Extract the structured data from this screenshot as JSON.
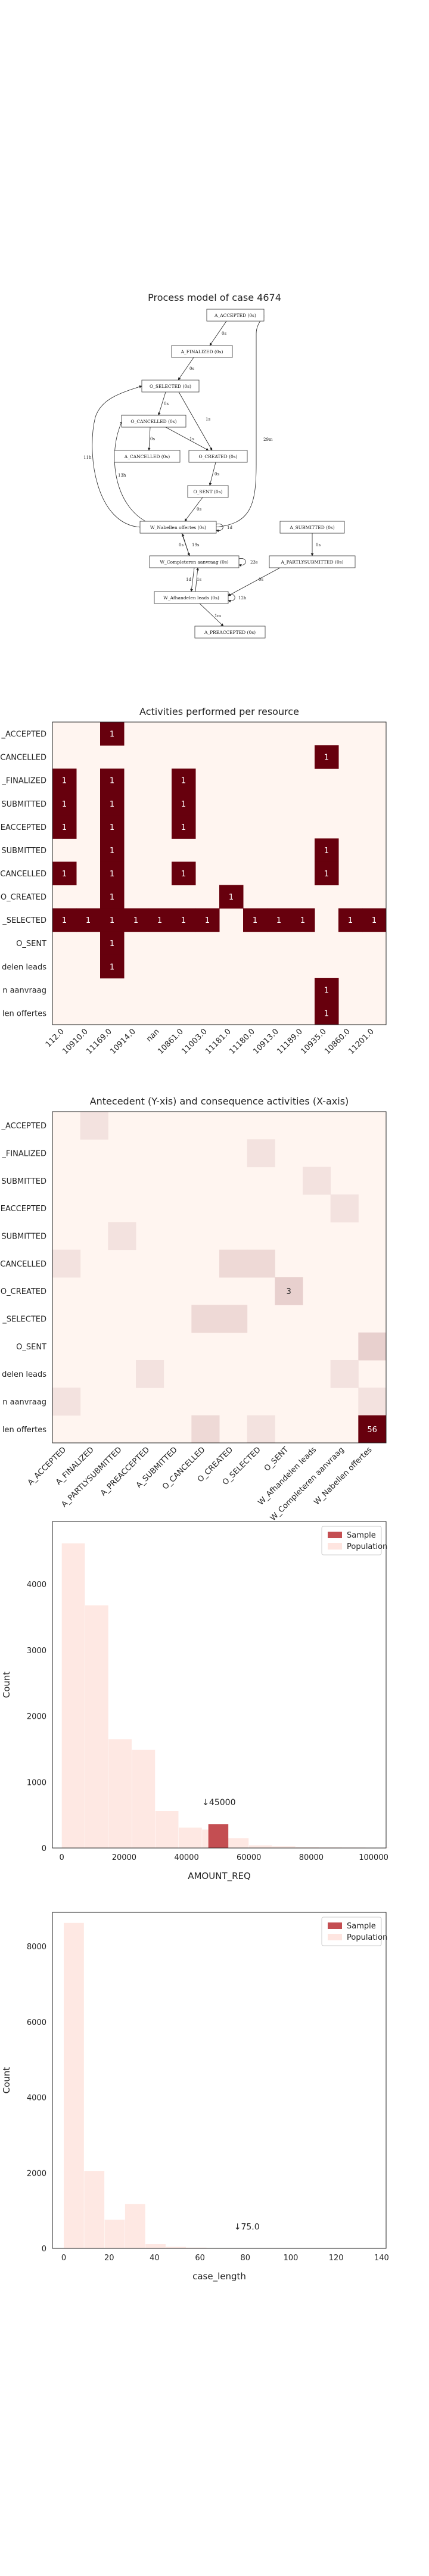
{
  "process_model": {
    "title": "Process model of case 4674",
    "nodes": [
      {
        "id": "a_accepted",
        "label": "A_ACCEPTED (0s)"
      },
      {
        "id": "a_finalized",
        "label": "A_FINALIZED (0s)"
      },
      {
        "id": "o_selected",
        "label": "O_SELECTED (0s)"
      },
      {
        "id": "o_cancelled",
        "label": "O_CANCELLED (0s)"
      },
      {
        "id": "a_cancelled",
        "label": "A_CANCELLED (0s)"
      },
      {
        "id": "o_created",
        "label": "O_CREATED (0s)"
      },
      {
        "id": "o_sent",
        "label": "O_SENT (0s)"
      },
      {
        "id": "w_nabellen",
        "label": "W_Nabellen offertes (0s)"
      },
      {
        "id": "a_submitted",
        "label": "A_SUBMITTED (0s)"
      },
      {
        "id": "w_completeren",
        "label": "W_Completeren aanvraag (0s)"
      },
      {
        "id": "a_partly",
        "label": "A_PARTLYSUBMITTED (0s)"
      },
      {
        "id": "w_afhandelen",
        "label": "W_Afhandelen leads (0s)"
      },
      {
        "id": "a_preaccepted",
        "label": "A_PREACCEPTED (0s)"
      }
    ],
    "edges": [
      {
        "from": "a_accepted",
        "to": "a_finalized",
        "label": "0s"
      },
      {
        "from": "a_finalized",
        "to": "o_selected",
        "label": "0s"
      },
      {
        "from": "o_selected",
        "to": "o_cancelled",
        "label": "0s"
      },
      {
        "from": "o_cancelled",
        "to": "a_cancelled",
        "label": "0s"
      },
      {
        "from": "o_cancelled",
        "to": "o_created",
        "label": "1s"
      },
      {
        "from": "o_selected",
        "to": "o_created",
        "label": "1s"
      },
      {
        "from": "o_created",
        "to": "o_sent",
        "label": "0s"
      },
      {
        "from": "o_sent",
        "to": "w_nabellen",
        "label": "0s"
      },
      {
        "from": "w_nabellen",
        "to": "o_selected",
        "label": "11h"
      },
      {
        "from": "w_nabellen",
        "to": "o_cancelled",
        "label": "13h"
      },
      {
        "from": "w_nabellen",
        "to": "a_accepted",
        "label": "29m"
      },
      {
        "from": "w_nabellen",
        "to": "w_nabellen",
        "label": "1d"
      },
      {
        "from": "w_nabellen",
        "to": "w_completeren",
        "label": "0s"
      },
      {
        "from": "w_completeren",
        "to": "w_nabellen",
        "label": "19s"
      },
      {
        "from": "w_completeren",
        "to": "w_completeren",
        "label": "23s"
      },
      {
        "from": "w_completeren",
        "to": "w_afhandelen",
        "label": "1d"
      },
      {
        "from": "w_afhandelen",
        "to": "w_completeren",
        "label": "1s"
      },
      {
        "from": "w_afhandelen",
        "to": "w_afhandelen",
        "label": "12h"
      },
      {
        "from": "a_submitted",
        "to": "a_partly",
        "label": "0s"
      },
      {
        "from": "a_partly",
        "to": "w_afhandelen",
        "label": "0s"
      },
      {
        "from": "w_afhandelen",
        "to": "a_preaccepted",
        "label": "1m"
      }
    ]
  },
  "chart_data": [
    {
      "type": "heatmap",
      "title": "Activities performed per resource",
      "rows": [
        "A_ACCEPTED",
        "A_CANCELLED",
        "A_FINALIZED",
        "A_PARTLYSUBMITTED",
        "A_PREACCEPTED",
        "A_SUBMITTED",
        "O_CANCELLED",
        "O_CREATED",
        "O_SELECTED",
        "O_SENT",
        "W_Afhandelen leads",
        "W_Completeren aanvraag",
        "W_Nabellen offertes"
      ],
      "row_tick_labels": [
        "_ACCEPTED",
        "CANCELLED",
        "_FINALIZED",
        "SUBMITTED",
        "EACCEPTED",
        "SUBMITTED",
        "CANCELLED",
        "O_CREATED",
        "_SELECTED",
        "O_SENT",
        "delen leads",
        "n aanvraag",
        "len offertes"
      ],
      "columns": [
        "112.0",
        "10910.0",
        "11169.0",
        "10914.0",
        "nan",
        "10861.0",
        "11003.0",
        "11181.0",
        "11180.0",
        "10913.0",
        "11189.0",
        "10935.0",
        "10860.0",
        "11201.0"
      ],
      "cell_labels": [
        [
          "",
          "",
          "1",
          "",
          "",
          "",
          "",
          "",
          "",
          "",
          "",
          "",
          "",
          ""
        ],
        [
          "",
          "",
          "",
          "",
          "",
          "",
          "",
          "",
          "",
          "",
          "",
          "1",
          "",
          ""
        ],
        [
          "1",
          "",
          "1",
          "",
          "",
          "1",
          "",
          "",
          "",
          "",
          "",
          "",
          "",
          ""
        ],
        [
          "1",
          "",
          "1",
          "",
          "",
          "1",
          "",
          "",
          "",
          "",
          "",
          "",
          "",
          ""
        ],
        [
          "1",
          "",
          "1",
          "",
          "",
          "1",
          "",
          "",
          "",
          "",
          "",
          "",
          "",
          ""
        ],
        [
          "",
          "",
          "1",
          "",
          "",
          "",
          "",
          "",
          "",
          "",
          "",
          "1",
          "",
          ""
        ],
        [
          "1",
          "",
          "1",
          "",
          "",
          "1",
          "",
          "",
          "",
          "",
          "",
          "1",
          "",
          ""
        ],
        [
          "",
          "",
          "1",
          "",
          "",
          "",
          "",
          "1",
          "",
          "",
          "",
          "",
          "",
          ""
        ],
        [
          "1",
          "1",
          "1",
          "1",
          "1",
          "1",
          "1",
          "",
          "1",
          "1",
          "1",
          "",
          "1",
          "1"
        ],
        [
          "",
          "",
          "1",
          "",
          "",
          "",
          "",
          "",
          "",
          "",
          "",
          "",
          "",
          ""
        ],
        [
          "",
          "",
          "1",
          "",
          "",
          "",
          "",
          "",
          "",
          "",
          "",
          "",
          "",
          ""
        ],
        [
          "",
          "",
          "",
          "",
          "",
          "",
          "",
          "",
          "",
          "",
          "",
          "1",
          "",
          ""
        ],
        [
          "",
          "",
          "",
          "",
          "",
          "",
          "",
          "",
          "",
          "",
          "",
          "1",
          "",
          ""
        ]
      ],
      "colors": {
        "low": "#fff5f0",
        "high": "#67000d"
      }
    },
    {
      "type": "heatmap",
      "title": "Antecedent (Y-xis) and consequence activities (X-axis)",
      "rows": [
        "A_ACCEPTED",
        "A_FINALIZED",
        "A_PARTLYSUBMITTED",
        "A_PREACCEPTED",
        "A_SUBMITTED",
        "O_CANCELLED",
        "O_CREATED",
        "O_SELECTED",
        "O_SENT",
        "W_Afhandelen leads",
        "W_Completeren aanvraag",
        "W_Nabellen offertes"
      ],
      "row_tick_labels": [
        "_ACCEPTED",
        "_FINALIZED",
        "SUBMITTED",
        "EACCEPTED",
        "SUBMITTED",
        "CANCELLED",
        "O_CREATED",
        "_SELECTED",
        "O_SENT",
        "delen leads",
        "n aanvraag",
        "len offertes"
      ],
      "columns": [
        "A_ACCEPTED",
        "A_FINALIZED",
        "A_PARTLYSUBMITTED",
        "A_PREACCEPTED",
        "A_SUBMITTED",
        "O_CANCELLED",
        "O_CREATED",
        "O_SELECTED",
        "O_SENT",
        "W_Afhandelen leads",
        "W_Completeren aanvraag",
        "W_Nabellen offertes"
      ],
      "max_value": 56,
      "cells": [
        {
          "row": 0,
          "col": 1,
          "value": 1
        },
        {
          "row": 1,
          "col": 7,
          "value": 1
        },
        {
          "row": 2,
          "col": 9,
          "value": 1
        },
        {
          "row": 3,
          "col": 10,
          "value": 1
        },
        {
          "row": 4,
          "col": 2,
          "value": 1
        },
        {
          "row": 5,
          "col": 0,
          "value": 1
        },
        {
          "row": 5,
          "col": 6,
          "value": 2
        },
        {
          "row": 5,
          "col": 7,
          "value": 2
        },
        {
          "row": 6,
          "col": 8,
          "value": 3,
          "label": "3"
        },
        {
          "row": 7,
          "col": 5,
          "value": 2
        },
        {
          "row": 7,
          "col": 6,
          "value": 2
        },
        {
          "row": 8,
          "col": 11,
          "value": 3
        },
        {
          "row": 9,
          "col": 3,
          "value": 1
        },
        {
          "row": 9,
          "col": 10,
          "value": 1
        },
        {
          "row": 10,
          "col": 0,
          "value": 1
        },
        {
          "row": 10,
          "col": 11,
          "value": 1
        },
        {
          "row": 11,
          "col": 5,
          "value": 2
        },
        {
          "row": 11,
          "col": 7,
          "value": 1
        },
        {
          "row": 11,
          "col": 11,
          "value": 56,
          "label": "56"
        }
      ],
      "colors": {
        "low": "#fff5f0",
        "high": "#67000d"
      }
    },
    {
      "type": "bar",
      "xlabel": "AMOUNT_REQ",
      "ylabel": "Count",
      "xlim": [
        -3000,
        104000
      ],
      "ylim": [
        0,
        4950
      ],
      "xticks": [
        0,
        20000,
        40000,
        60000,
        80000,
        100000
      ],
      "yticks": [
        0,
        1000,
        2000,
        3000,
        4000
      ],
      "bin_width": 7500,
      "legend_position": "top-right",
      "annotation": {
        "text": "↓45000",
        "x": 45000,
        "y": 650
      },
      "series": [
        {
          "name": "Population",
          "color": "#fee5e0",
          "bins": [
            {
              "x0": 0,
              "count": 4620
            },
            {
              "x0": 7500,
              "count": 3680
            },
            {
              "x0": 15000,
              "count": 1650
            },
            {
              "x0": 22500,
              "count": 1490
            },
            {
              "x0": 30000,
              "count": 560
            },
            {
              "x0": 37500,
              "count": 310
            },
            {
              "x0": 45000,
              "count": 280
            },
            {
              "x0": 52500,
              "count": 150
            },
            {
              "x0": 60000,
              "count": 40
            },
            {
              "x0": 67500,
              "count": 25
            },
            {
              "x0": 75000,
              "count": 15
            },
            {
              "x0": 82500,
              "count": 10
            },
            {
              "x0": 90000,
              "count": 8
            },
            {
              "x0": 97500,
              "count": 5
            }
          ]
        },
        {
          "name": "Sample",
          "color": "#c44e52",
          "bins": [
            {
              "x0": 47000,
              "x1": 53500,
              "count": 360
            }
          ]
        }
      ]
    },
    {
      "type": "bar",
      "xlabel": "case_length",
      "ylabel": "Count",
      "xlim": [
        -5,
        142
      ],
      "ylim": [
        0,
        8900
      ],
      "xticks": [
        0,
        20,
        40,
        60,
        80,
        100,
        120,
        140
      ],
      "yticks": [
        0,
        2000,
        4000,
        6000,
        8000
      ],
      "bin_width": 9,
      "legend_position": "top-right",
      "annotation": {
        "text": "↓75.0",
        "x": 75,
        "y": 500
      },
      "series": [
        {
          "name": "Population",
          "color": "#fee5e0",
          "bins": [
            {
              "x0": 0,
              "count": 8620
            },
            {
              "x0": 9,
              "count": 2050
            },
            {
              "x0": 18,
              "count": 760
            },
            {
              "x0": 27,
              "count": 1170
            },
            {
              "x0": 36,
              "count": 110
            },
            {
              "x0": 45,
              "count": 40
            },
            {
              "x0": 54,
              "count": 20
            },
            {
              "x0": 63,
              "count": 10
            },
            {
              "x0": 72,
              "count": 5
            }
          ]
        },
        {
          "name": "Sample",
          "color": "#c44e52",
          "bins": []
        }
      ]
    }
  ]
}
